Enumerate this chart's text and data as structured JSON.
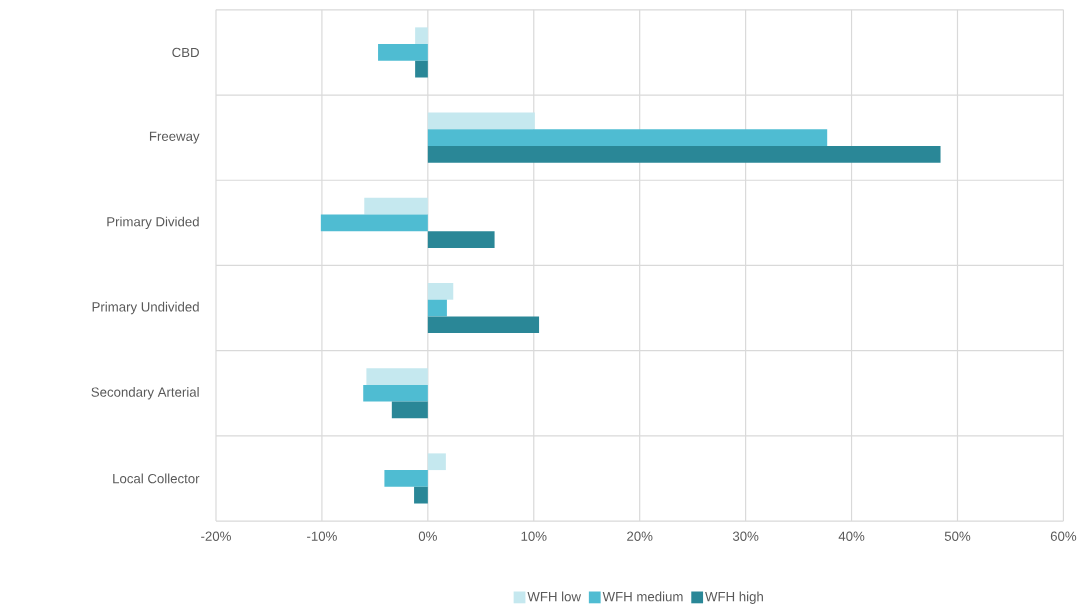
{
  "chart_data": {
    "type": "bar",
    "orientation": "horizontal",
    "categories": [
      "CBD",
      "Freeway",
      "Primary Divided",
      "Primary Undivided",
      "Secondary Arterial",
      "Local Collector"
    ],
    "series": [
      {
        "name": "WFH low",
        "color": "#c5e8ef",
        "values": [
          -1.2,
          10.1,
          -6.0,
          2.4,
          -5.8,
          1.7
        ]
      },
      {
        "name": "WFH medium",
        "color": "#4fbcd2",
        "values": [
          -4.7,
          37.7,
          -10.1,
          1.8,
          -6.1,
          -4.1
        ]
      },
      {
        "name": "WFH high",
        "color": "#2a8797",
        "values": [
          -1.2,
          48.4,
          6.3,
          10.5,
          -3.4,
          -1.3
        ]
      }
    ],
    "xlim": [
      -20,
      60
    ],
    "xticks": [
      {
        "value": -20,
        "label": "-20%"
      },
      {
        "value": -10,
        "label": "-10%"
      },
      {
        "value": 0,
        "label": "0%"
      },
      {
        "value": 10,
        "label": "10%"
      },
      {
        "value": 20,
        "label": "20%"
      },
      {
        "value": 30,
        "label": "30%"
      },
      {
        "value": 40,
        "label": "40%"
      },
      {
        "value": 50,
        "label": "50%"
      },
      {
        "value": 60,
        "label": "60%"
      }
    ],
    "grid": true,
    "legend": "bottom"
  }
}
